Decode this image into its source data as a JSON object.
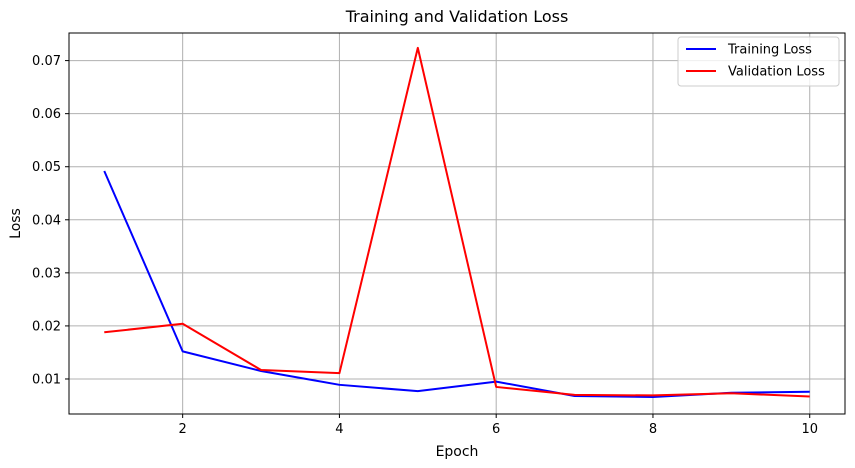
{
  "chart_data": {
    "type": "line",
    "title": "Training and Validation Loss",
    "xlabel": "Epoch",
    "ylabel": "Loss",
    "x": [
      1,
      2,
      3,
      4,
      5,
      6,
      7,
      8,
      9,
      10
    ],
    "xlim": [
      0.55,
      10.45
    ],
    "ylim": [
      0.0034,
      0.0752
    ],
    "xticks": [
      2,
      4,
      6,
      8,
      10
    ],
    "xtick_labels": [
      "2",
      "4",
      "6",
      "8",
      "10"
    ],
    "yticks": [
      0.01,
      0.02,
      0.03,
      0.04,
      0.05,
      0.06,
      0.07
    ],
    "ytick_labels": [
      "0.01",
      "0.02",
      "0.03",
      "0.04",
      "0.05",
      "0.06",
      "0.07"
    ],
    "grid": true,
    "legend_position": "top-right",
    "series": [
      {
        "name": "Training Loss",
        "color": "#0000ff",
        "values": [
          0.0492,
          0.0152,
          0.0115,
          0.0089,
          0.0077,
          0.0095,
          0.0068,
          0.0066,
          0.0074,
          0.0076
        ]
      },
      {
        "name": "Validation Loss",
        "color": "#ff0000",
        "values": [
          0.0188,
          0.0204,
          0.0117,
          0.0111,
          0.0724,
          0.0085,
          0.007,
          0.0069,
          0.0073,
          0.0067
        ]
      }
    ]
  }
}
